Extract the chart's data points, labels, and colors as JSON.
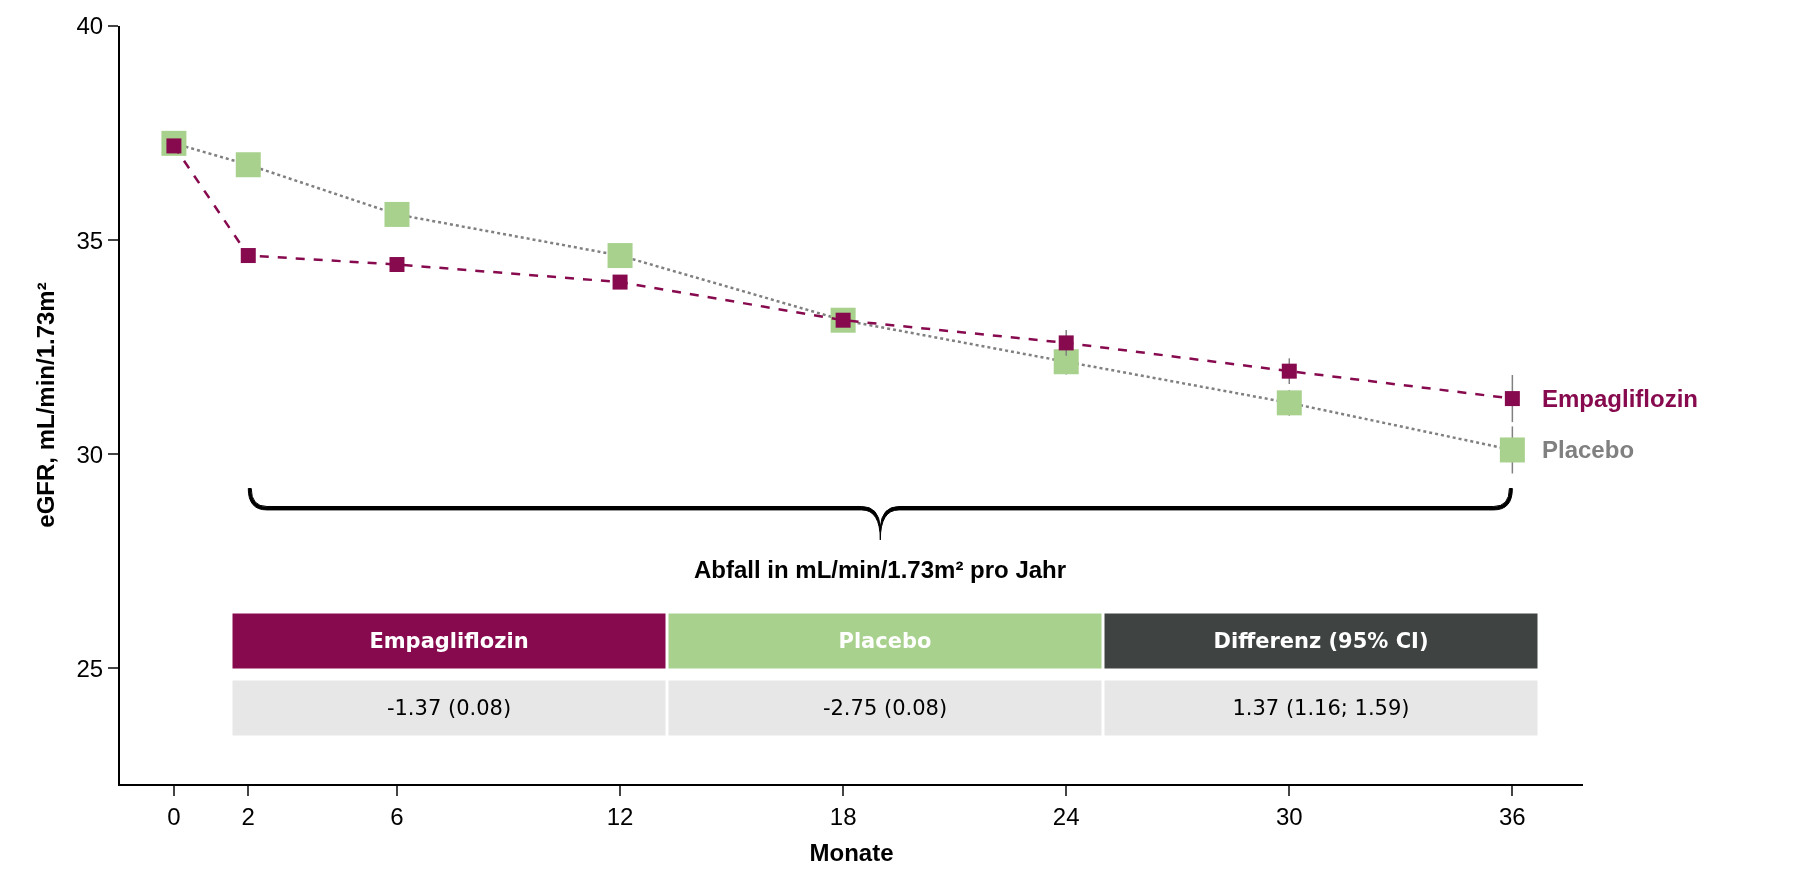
{
  "chart_data": {
    "type": "line",
    "xlabel": "Monate",
    "ylabel": "eGFR, mL/min/1.73m²",
    "x": [
      0,
      2,
      6,
      12,
      18,
      24,
      30,
      36
    ],
    "series": [
      {
        "name": "Empagliflozin",
        "color": "#870a4f",
        "line_style": "dashed",
        "values": [
          37.2,
          34.64,
          34.43,
          34.02,
          33.13,
          32.6,
          31.94,
          31.3
        ],
        "errors": [
          null,
          null,
          null,
          null,
          null,
          0.3,
          0.3,
          0.55
        ]
      },
      {
        "name": "Placebo",
        "color": "#a8d18d",
        "line_style": "dotted",
        "values": [
          37.26,
          36.76,
          35.6,
          34.64,
          33.13,
          32.16,
          31.2,
          30.1
        ],
        "errors": [
          null,
          null,
          null,
          null,
          null,
          0.3,
          0.3,
          0.55
        ]
      }
    ],
    "xlim": [
      -1.45,
      37.9
    ],
    "ylim": [
      22.3,
      40
    ],
    "xticks": [
      0,
      2,
      6,
      12,
      18,
      24,
      30,
      36
    ],
    "yticks": [
      25,
      30,
      35,
      40
    ],
    "marker": "square",
    "legend": false,
    "annotations": [
      "Abfall in mL/min/1.73m² pro Jahr",
      "Empagliflozin",
      "Placebo",
      "Differenz (95% CI)",
      "-1.37 (0.08)",
      "-2.75 (0.08)",
      "1.37 (1.16; 1.59)"
    ]
  }
}
